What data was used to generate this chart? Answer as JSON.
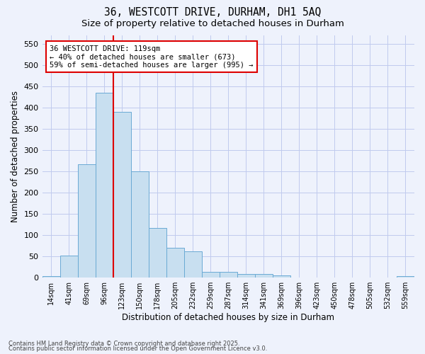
{
  "title1": "36, WESTCOTT DRIVE, DURHAM, DH1 5AQ",
  "title2": "Size of property relative to detached houses in Durham",
  "xlabel": "Distribution of detached houses by size in Durham",
  "ylabel": "Number of detached properties",
  "categories": [
    "14sqm",
    "41sqm",
    "69sqm",
    "96sqm",
    "123sqm",
    "150sqm",
    "178sqm",
    "205sqm",
    "232sqm",
    "259sqm",
    "287sqm",
    "314sqm",
    "341sqm",
    "369sqm",
    "396sqm",
    "423sqm",
    "450sqm",
    "478sqm",
    "505sqm",
    "532sqm",
    "559sqm"
  ],
  "values": [
    3,
    52,
    267,
    435,
    390,
    251,
    117,
    70,
    62,
    13,
    14,
    9,
    8,
    6,
    0,
    0,
    1,
    0,
    0,
    0,
    3
  ],
  "bar_color": "#c8dff0",
  "bar_edge_color": "#6aaad4",
  "vline_index": 3.5,
  "vline_color": "#dd0000",
  "annotation_line1": "36 WESTCOTT DRIVE: 119sqm",
  "annotation_line2": "← 40% of detached houses are smaller (673)",
  "annotation_line3": "59% of semi-detached houses are larger (995) →",
  "annotation_box_facecolor": "#ffffff",
  "annotation_box_edgecolor": "#dd0000",
  "ylim_max": 570,
  "yticks": [
    0,
    50,
    100,
    150,
    200,
    250,
    300,
    350,
    400,
    450,
    500,
    550
  ],
  "footer1": "Contains HM Land Registry data © Crown copyright and database right 2025.",
  "footer2": "Contains public sector information licensed under the Open Government Licence v3.0.",
  "bg_color": "#eef2fc",
  "grid_color": "#c0caee"
}
